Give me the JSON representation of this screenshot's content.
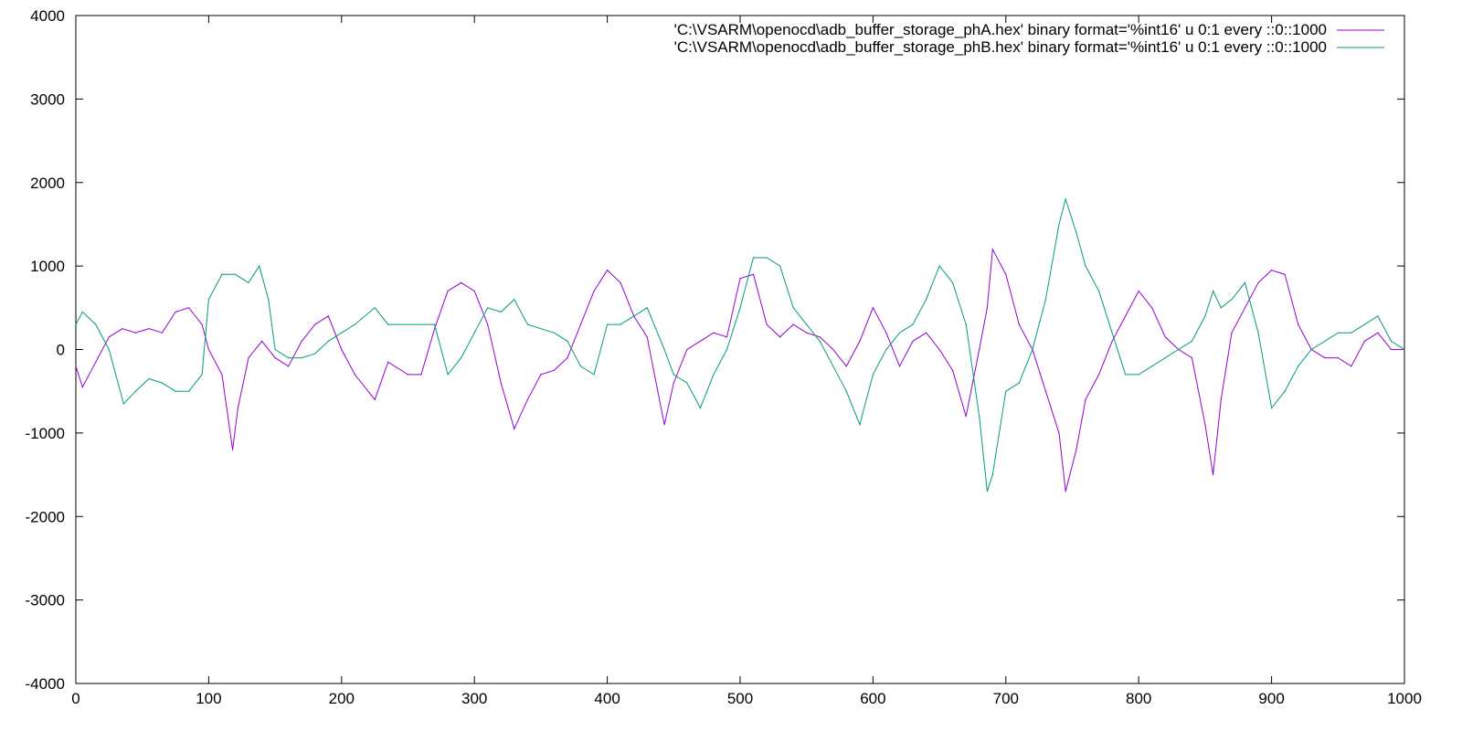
{
  "chart_data": {
    "type": "line",
    "title": "",
    "xlabel": "",
    "ylabel": "",
    "xlim": [
      0,
      1000
    ],
    "ylim": [
      -4000,
      4000
    ],
    "grid": false,
    "legend_position": "top-right",
    "x_ticks": [
      0,
      100,
      200,
      300,
      400,
      500,
      600,
      700,
      800,
      900,
      1000
    ],
    "x_tick_labels": [
      "0",
      "100",
      "200",
      "300",
      "400",
      "500",
      "600",
      "700",
      "800",
      "900",
      "1000"
    ],
    "y_ticks": [
      4000,
      3000,
      2000,
      1000,
      0,
      -1000,
      -2000,
      -3000,
      -4000
    ],
    "y_tick_labels": [
      "4000",
      "3000",
      "2000",
      "1000",
      "0",
      "-1000",
      "-2000",
      "-3000",
      "-4000"
    ],
    "series": [
      {
        "name": "'C:\\VSARM\\openocd\\adb_buffer_storage_phA.hex' binary format='%int16' u 0:1 every ::0::1000",
        "color": "#9400d3",
        "x": [
          0,
          5,
          15,
          25,
          35,
          45,
          55,
          65,
          75,
          85,
          95,
          100,
          110,
          118,
          122,
          130,
          140,
          150,
          160,
          170,
          180,
          190,
          200,
          210,
          225,
          235,
          250,
          260,
          270,
          280,
          290,
          300,
          310,
          320,
          330,
          340,
          350,
          360,
          370,
          380,
          390,
          400,
          410,
          420,
          430,
          443,
          450,
          460,
          470,
          480,
          490,
          500,
          510,
          520,
          530,
          540,
          550,
          560,
          570,
          580,
          590,
          600,
          610,
          620,
          630,
          640,
          650,
          660,
          670,
          680,
          686,
          690,
          700,
          710,
          720,
          730,
          740,
          745,
          753,
          760,
          770,
          780,
          790,
          800,
          810,
          820,
          830,
          840,
          850,
          856,
          862,
          870,
          880,
          890,
          900,
          910,
          920,
          930,
          940,
          950,
          960,
          970,
          980,
          990,
          1000
        ],
        "values": [
          -200,
          -450,
          -150,
          150,
          250,
          200,
          250,
          200,
          450,
          500,
          300,
          0,
          -300,
          -1200,
          -700,
          -100,
          100,
          -100,
          -200,
          100,
          300,
          400,
          0,
          -300,
          -600,
          -150,
          -300,
          -300,
          250,
          700,
          800,
          700,
          300,
          -400,
          -950,
          -600,
          -300,
          -250,
          -100,
          300,
          700,
          950,
          800,
          400,
          150,
          -900,
          -400,
          0,
          100,
          200,
          150,
          850,
          900,
          300,
          150,
          300,
          200,
          150,
          0,
          -200,
          100,
          500,
          200,
          -200,
          100,
          200,
          0,
          -250,
          -800,
          0,
          500,
          1200,
          900,
          300,
          0,
          -500,
          -1000,
          -1700,
          -1200,
          -600,
          -300,
          100,
          400,
          700,
          500,
          150,
          0,
          -100,
          -900,
          -1500,
          -600,
          200,
          500,
          800,
          950,
          900,
          300,
          0,
          -100,
          -100,
          -200,
          100,
          200,
          0,
          0
        ]
      },
      {
        "name": "'C:\\VSARM\\openocd\\adb_buffer_storage_phB.hex' binary format='%int16' u 0:1 every ::0::1000",
        "color": "#009e73",
        "x": [
          0,
          5,
          15,
          25,
          36,
          45,
          55,
          65,
          75,
          85,
          95,
          100,
          110,
          120,
          130,
          138,
          145,
          150,
          160,
          170,
          180,
          190,
          200,
          210,
          225,
          235,
          250,
          260,
          270,
          280,
          290,
          300,
          310,
          320,
          330,
          340,
          350,
          360,
          370,
          380,
          390,
          400,
          410,
          420,
          430,
          443,
          450,
          460,
          470,
          480,
          490,
          500,
          510,
          520,
          530,
          540,
          550,
          560,
          570,
          580,
          590,
          600,
          610,
          620,
          630,
          640,
          650,
          660,
          670,
          680,
          686,
          690,
          700,
          710,
          720,
          730,
          740,
          745,
          753,
          760,
          770,
          780,
          790,
          800,
          810,
          820,
          830,
          840,
          850,
          856,
          862,
          870,
          880,
          890,
          900,
          910,
          920,
          930,
          940,
          950,
          960,
          970,
          980,
          990,
          1000
        ],
        "values": [
          300,
          450,
          300,
          0,
          -650,
          -500,
          -350,
          -400,
          -500,
          -500,
          -300,
          600,
          900,
          900,
          800,
          1000,
          600,
          0,
          -100,
          -100,
          -50,
          100,
          200,
          300,
          500,
          300,
          300,
          300,
          300,
          -300,
          -100,
          200,
          500,
          450,
          600,
          300,
          250,
          200,
          100,
          -200,
          -300,
          300,
          300,
          400,
          500,
          0,
          -300,
          -400,
          -700,
          -300,
          0,
          500,
          1100,
          1100,
          1000,
          500,
          300,
          100,
          -200,
          -500,
          -900,
          -300,
          0,
          200,
          300,
          600,
          1000,
          800,
          300,
          -800,
          -1700,
          -1500,
          -500,
          -400,
          0,
          600,
          1500,
          1800,
          1400,
          1000,
          700,
          200,
          -300,
          -300,
          -200,
          -100,
          0,
          100,
          400,
          700,
          500,
          600,
          800,
          200,
          -700,
          -500,
          -200,
          0,
          100,
          200,
          200,
          300,
          400,
          100,
          0
        ]
      }
    ]
  }
}
